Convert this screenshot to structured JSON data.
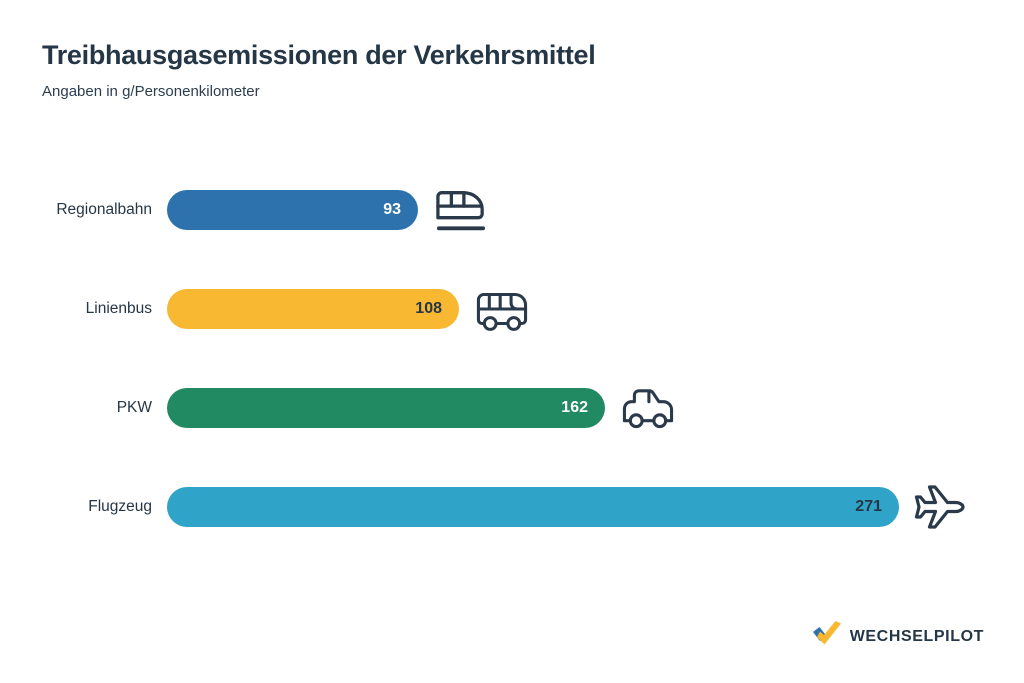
{
  "header": {
    "title": "Treibhausgasemissionen der Verkehrsmittel",
    "subtitle": "Angaben in g/Personenkilometer"
  },
  "chart_data": {
    "type": "bar",
    "orientation": "horizontal",
    "title": "Treibhausgasemissionen der Verkehrsmittel",
    "unit": "g/Personenkilometer",
    "categories": [
      "Regionalbahn",
      "Linienbus",
      "PKW",
      "Flugzeug"
    ],
    "values": [
      93,
      108,
      162,
      271
    ],
    "xlim": [
      0,
      271
    ],
    "grid": false,
    "value_labels": "inside-end",
    "rows": [
      {
        "label": "Regionalbahn",
        "value": 93,
        "color": "#2d72ad",
        "value_color": "#ffffff",
        "icon": "train-icon"
      },
      {
        "label": "Linienbus",
        "value": 108,
        "color": "#f8b832",
        "value_color": "#253746",
        "icon": "bus-icon"
      },
      {
        "label": "PKW",
        "value": 162,
        "color": "#218a63",
        "value_color": "#ffffff",
        "icon": "car-icon"
      },
      {
        "label": "Flugzeug",
        "value": 271,
        "color": "#30a4c8",
        "value_color": "#253746",
        "icon": "plane-icon"
      }
    ]
  },
  "logo": {
    "text": "WECHSELPILOT",
    "mark_colors": {
      "blue": "#2d72ad",
      "yellow": "#f8b832"
    }
  },
  "colors": {
    "text": "#253746",
    "background": "#ffffff",
    "icon_stroke": "#2b3a4a"
  }
}
